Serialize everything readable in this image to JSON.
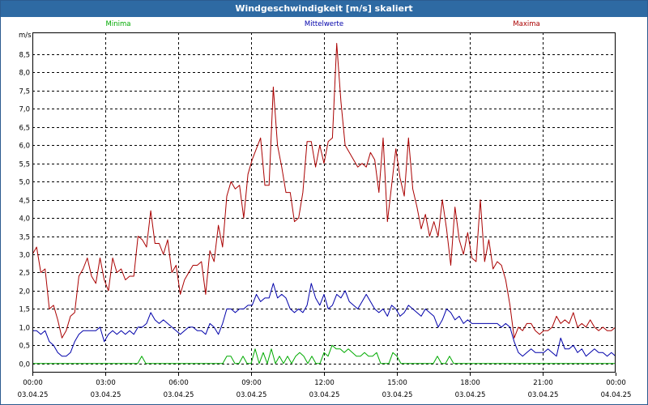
{
  "window": {
    "title": "Windgeschwindigkeit [m/s] skaliert"
  },
  "colors": {
    "minima": "#00aa00",
    "mittel": "#0000aa",
    "maxima": "#aa0000",
    "grid": "#000000"
  },
  "chart_data": {
    "type": "line",
    "title": "Windgeschwindigkeit [m/s] skaliert",
    "ylabel": "m/s",
    "xlabel": "",
    "ylim": [
      -0.25,
      9.1
    ],
    "xlim_hours": [
      0,
      24
    ],
    "y_ticks": [
      "0,0",
      "0,5",
      "1,0",
      "1,5",
      "2,0",
      "2,5",
      "3,0",
      "3,5",
      "4,0",
      "4,5",
      "5,0",
      "5,5",
      "6,0",
      "6,5",
      "7,0",
      "7,5",
      "8,0",
      "8,5"
    ],
    "y_tick_values": [
      0,
      0.5,
      1,
      1.5,
      2,
      2.5,
      3,
      3.5,
      4,
      4.5,
      5,
      5.5,
      6,
      6.5,
      7,
      7.5,
      8,
      8.5
    ],
    "x_ticks": [
      {
        "time": "00:00",
        "date": "03.04.25"
      },
      {
        "time": "03:00",
        "date": "03.04.25"
      },
      {
        "time": "06:00",
        "date": "03.04.25"
      },
      {
        "time": "09:00",
        "date": "03.04.25"
      },
      {
        "time": "12:00",
        "date": "03.04.25"
      },
      {
        "time": "15:00",
        "date": "03.04.25"
      },
      {
        "time": "18:00",
        "date": "03.04.25"
      },
      {
        "time": "21:00",
        "date": "03.04.25"
      },
      {
        "time": "00:00",
        "date": "04.04.25"
      }
    ],
    "x_tick_hours": [
      0,
      3,
      6,
      9,
      12,
      15,
      18,
      21,
      24
    ],
    "legend": [
      {
        "name": "Minima",
        "position": "top-left"
      },
      {
        "name": "Mittelwerte",
        "position": "top-center"
      },
      {
        "name": "Maxima",
        "position": "top-right"
      }
    ],
    "series": [
      {
        "name": "Maxima",
        "color_key": "maxima",
        "values": [
          3.0,
          3.2,
          2.5,
          2.6,
          1.5,
          1.6,
          1.2,
          0.7,
          0.9,
          1.3,
          1.4,
          2.4,
          2.6,
          2.9,
          2.4,
          2.2,
          2.9,
          2.3,
          2.0,
          2.9,
          2.5,
          2.6,
          2.3,
          2.4,
          2.4,
          3.5,
          3.4,
          3.2,
          4.2,
          3.3,
          3.3,
          3.0,
          3.4,
          2.5,
          2.7,
          1.9,
          2.3,
          2.5,
          2.7,
          2.7,
          2.8,
          1.9,
          3.1,
          2.8,
          3.8,
          3.2,
          4.6,
          5.0,
          4.8,
          4.9,
          4.0,
          5.2,
          5.6,
          5.9,
          6.2,
          4.9,
          4.9,
          7.6,
          6.0,
          5.4,
          4.7,
          4.7,
          3.9,
          4.0,
          4.7,
          6.1,
          6.1,
          5.4,
          6.0,
          5.5,
          6.1,
          6.2,
          8.8,
          7.2,
          6.0,
          5.8,
          5.6,
          5.4,
          5.5,
          5.4,
          5.8,
          5.6,
          4.7,
          6.2,
          3.9,
          4.9,
          5.9,
          5.1,
          4.6,
          6.2,
          4.8,
          4.3,
          3.7,
          4.1,
          3.5,
          3.9,
          3.5,
          4.5,
          3.7,
          2.7,
          4.3,
          3.4,
          3.0,
          3.6,
          2.9,
          2.8,
          4.5,
          2.8,
          3.4,
          2.6,
          2.8,
          2.7,
          2.3,
          1.6,
          0.7,
          1.0,
          0.9,
          1.1,
          1.1,
          0.9,
          0.8,
          0.9,
          0.9,
          1.0,
          1.3,
          1.1,
          1.2,
          1.1,
          1.4,
          1.0,
          1.1,
          1.0,
          1.2,
          1.0,
          0.9,
          1.0,
          0.9,
          0.9,
          1.0
        ]
      },
      {
        "name": "Mittelwerte",
        "color_key": "mittel",
        "values": [
          0.9,
          0.9,
          0.8,
          0.9,
          0.6,
          0.5,
          0.3,
          0.2,
          0.2,
          0.3,
          0.6,
          0.8,
          0.9,
          0.9,
          0.9,
          0.9,
          1.0,
          0.6,
          0.8,
          0.9,
          0.8,
          0.9,
          0.8,
          0.9,
          0.8,
          1.0,
          1.0,
          1.1,
          1.4,
          1.2,
          1.1,
          1.2,
          1.1,
          1.0,
          0.9,
          0.8,
          0.9,
          1.0,
          1.0,
          0.9,
          0.9,
          0.8,
          1.1,
          1.0,
          0.8,
          1.1,
          1.5,
          1.5,
          1.4,
          1.5,
          1.5,
          1.6,
          1.6,
          1.9,
          1.7,
          1.8,
          1.8,
          2.2,
          1.8,
          1.9,
          1.8,
          1.5,
          1.4,
          1.5,
          1.4,
          1.6,
          2.2,
          1.8,
          1.6,
          1.9,
          1.5,
          1.6,
          1.9,
          1.8,
          2.0,
          1.7,
          1.6,
          1.5,
          1.7,
          1.9,
          1.7,
          1.5,
          1.4,
          1.5,
          1.3,
          1.6,
          1.5,
          1.3,
          1.4,
          1.6,
          1.5,
          1.4,
          1.3,
          1.5,
          1.4,
          1.3,
          1.0,
          1.2,
          1.5,
          1.4,
          1.2,
          1.3,
          1.1,
          1.2,
          1.1,
          1.1,
          1.1,
          1.1,
          1.1,
          1.1,
          1.1,
          1.0,
          1.1,
          1.0,
          0.6,
          0.3,
          0.2,
          0.3,
          0.4,
          0.3,
          0.3,
          0.3,
          0.4,
          0.3,
          0.2,
          0.7,
          0.4,
          0.4,
          0.5,
          0.3,
          0.4,
          0.2,
          0.3,
          0.4,
          0.3,
          0.3,
          0.2,
          0.3,
          0.2
        ]
      },
      {
        "name": "Minima",
        "color_key": "minima",
        "values": [
          0,
          0,
          0,
          0,
          0,
          0,
          0,
          0,
          0,
          0,
          0,
          0,
          0,
          0,
          0,
          0,
          0,
          0,
          0,
          0,
          0,
          0,
          0,
          0,
          0,
          0,
          0,
          0.2,
          0,
          0,
          0,
          0,
          0,
          0,
          0,
          0,
          0,
          0,
          0,
          0,
          0,
          0,
          0,
          0,
          0,
          0,
          0,
          0,
          0.2,
          0.2,
          0,
          0,
          0.2,
          0,
          0,
          0.4,
          0,
          0.3,
          0,
          0.4,
          0,
          0.2,
          0,
          0.2,
          0,
          0.2,
          0.3,
          0.2,
          0,
          0.2,
          0,
          0,
          0.3,
          0.2,
          0.5,
          0.4,
          0.4,
          0.3,
          0.4,
          0.3,
          0.2,
          0.2,
          0.3,
          0.2,
          0.2,
          0.3,
          0,
          0,
          0,
          0.3,
          0.2,
          0,
          0,
          0,
          0,
          0,
          0,
          0,
          0,
          0,
          0.2,
          0,
          0,
          0.2,
          0,
          0,
          0,
          0,
          0,
          0,
          0,
          0,
          0,
          0,
          0,
          0,
          0,
          0,
          0,
          0,
          0,
          0,
          0,
          0,
          0,
          0,
          0,
          0,
          0,
          0,
          0,
          0,
          0,
          0,
          0,
          0,
          0,
          0,
          0,
          0,
          0,
          0,
          0,
          0,
          0
        ]
      }
    ]
  }
}
